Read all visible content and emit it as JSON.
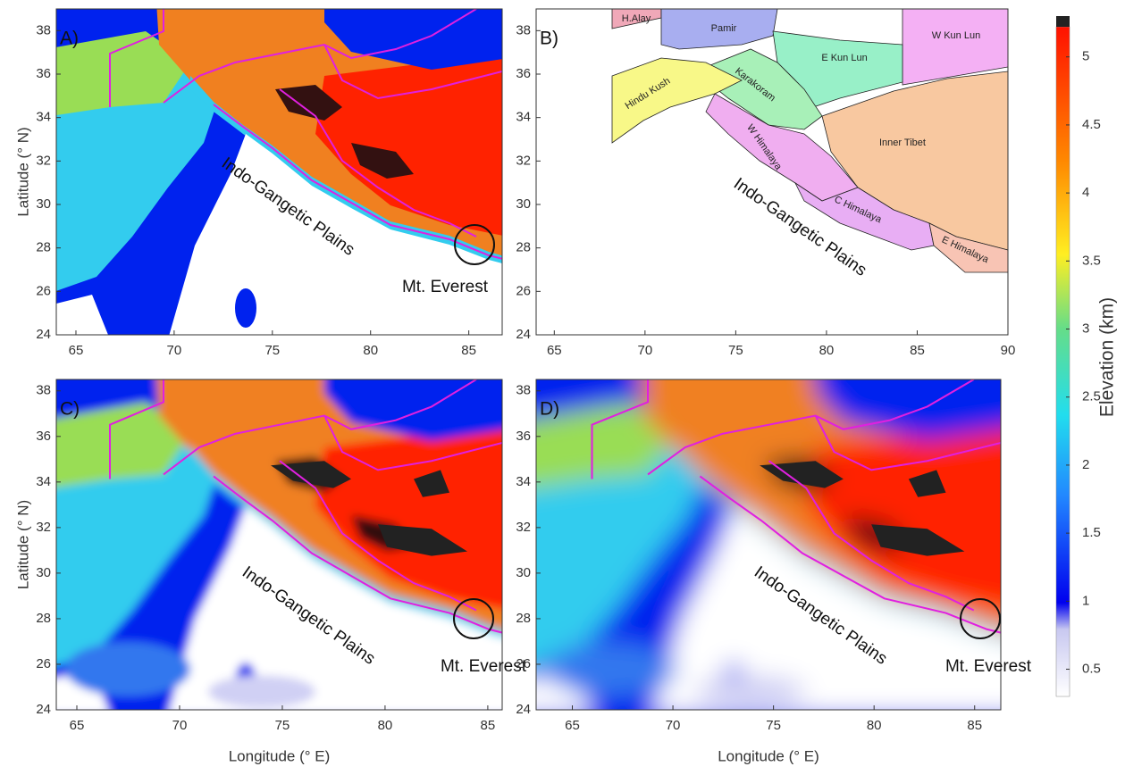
{
  "panels": [
    {
      "label": "A)",
      "xlim": [
        64,
        86.7
      ],
      "ylim": [
        24,
        39
      ],
      "xticks": [
        65,
        70,
        75,
        80,
        85
      ],
      "yticks": [
        24,
        26,
        28,
        30,
        32,
        34,
        36,
        38
      ],
      "plain": "Indo-Gangetic Plains",
      "peak": "Mt. Everest"
    },
    {
      "label": "B)",
      "xlim": [
        64,
        90
      ],
      "ylim": [
        24,
        39
      ],
      "xticks": [
        65,
        70,
        75,
        80,
        85,
        90
      ],
      "yticks": [
        24,
        26,
        28,
        30,
        32,
        34,
        36,
        38
      ],
      "plain": "Indo-Gangetic Plains",
      "regions": [
        "H.Alay",
        "Pamir",
        "W Kun Lun",
        "E Kun Lun",
        "Karakoram",
        "Hindu Kush",
        "Inner Tibet",
        "W Himalaya",
        "C Himalaya",
        "E Himalaya"
      ]
    },
    {
      "label": "C)",
      "xlim": [
        64,
        85.7
      ],
      "ylim": [
        24,
        38.5
      ],
      "xticks": [
        65,
        70,
        75,
        80,
        85
      ],
      "yticks": [
        24,
        26,
        28,
        30,
        32,
        34,
        36,
        38
      ],
      "plain": "Indo-Gangetic Plains",
      "peak": "Mt. Everest"
    },
    {
      "label": "D)",
      "xlim": [
        63.2,
        86.3
      ],
      "ylim": [
        24,
        38.5
      ],
      "xticks": [
        65,
        70,
        75,
        80,
        85
      ],
      "yticks": [
        24,
        26,
        28,
        30,
        32,
        34,
        36,
        38
      ],
      "plain": "Indo-Gangetic Plains",
      "peak": "Mt. Everest"
    }
  ],
  "xlabel": "Longitude (° E)",
  "ylabel": "Latitude (° N)",
  "colorbar": {
    "label": "Elevation (km)",
    "lim": [
      0.3,
      5.3
    ],
    "ticks": [
      0.5,
      1,
      1.5,
      2,
      2.5,
      3,
      3.5,
      4,
      4.5,
      5
    ]
  }
}
